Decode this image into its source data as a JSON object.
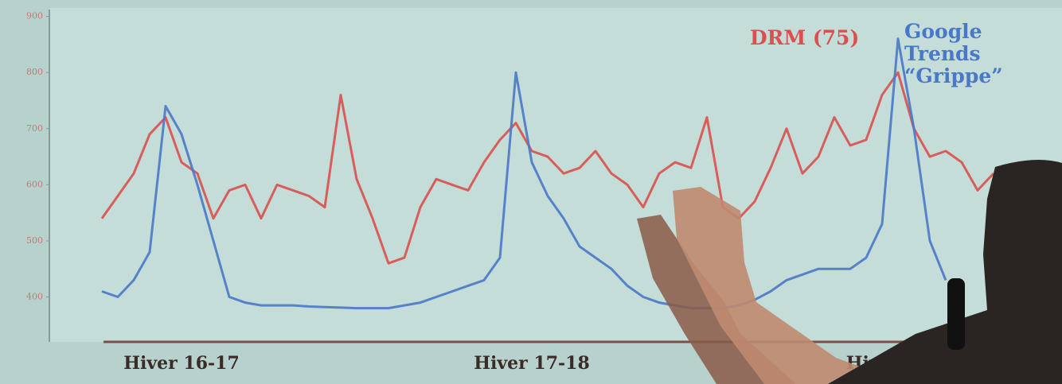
{
  "chart_data": {
    "type": "line",
    "categories": [
      null,
      null,
      null,
      null,
      null,
      "Hiver 16-17",
      null,
      null,
      null,
      null,
      null,
      null,
      null,
      null,
      null,
      null,
      null,
      null,
      null,
      null,
      null,
      null,
      null,
      null,
      null,
      null,
      null,
      "Hiver 17-18",
      null,
      null,
      null,
      null,
      null,
      null,
      null,
      null,
      null,
      null,
      null,
      null,
      null,
      null,
      null,
      null,
      null,
      null,
      null,
      null,
      null,
      "Hiver 1",
      null,
      null,
      null,
      null,
      null,
      null,
      null
    ],
    "series": [
      {
        "name": "DRM (75)",
        "color": "#d9504e",
        "values": [
          540,
          580,
          620,
          690,
          720,
          640,
          620,
          540,
          590,
          600,
          540,
          600,
          590,
          580,
          560,
          760,
          610,
          540,
          460,
          470,
          560,
          610,
          600,
          590,
          640,
          680,
          710,
          660,
          650,
          620,
          630,
          660,
          620,
          600,
          560,
          620,
          640,
          630,
          720,
          560,
          540,
          570,
          630,
          700,
          620,
          650,
          720,
          670,
          680,
          760,
          800,
          700,
          650,
          660,
          640,
          590,
          620
        ]
      },
      {
        "name": "Google Trends “Grippe”",
        "color": "#4a78c8",
        "values": [
          410,
          400,
          430,
          480,
          740,
          690,
          600,
          500,
          400,
          390,
          385,
          385,
          385,
          383,
          382,
          381,
          380,
          380,
          380,
          385,
          390,
          400,
          410,
          420,
          430,
          470,
          800,
          640,
          580,
          540,
          490,
          470,
          450,
          420,
          400,
          390,
          385,
          380,
          380,
          380,
          385,
          395,
          410,
          430,
          440,
          450,
          450,
          450,
          470,
          530,
          860,
          700,
          500,
          430,
          null,
          null,
          null
        ]
      }
    ],
    "ylim": [
      320,
      915
    ],
    "yticks": [
      400,
      500,
      600,
      700,
      800,
      900
    ],
    "grid": false
  }
}
